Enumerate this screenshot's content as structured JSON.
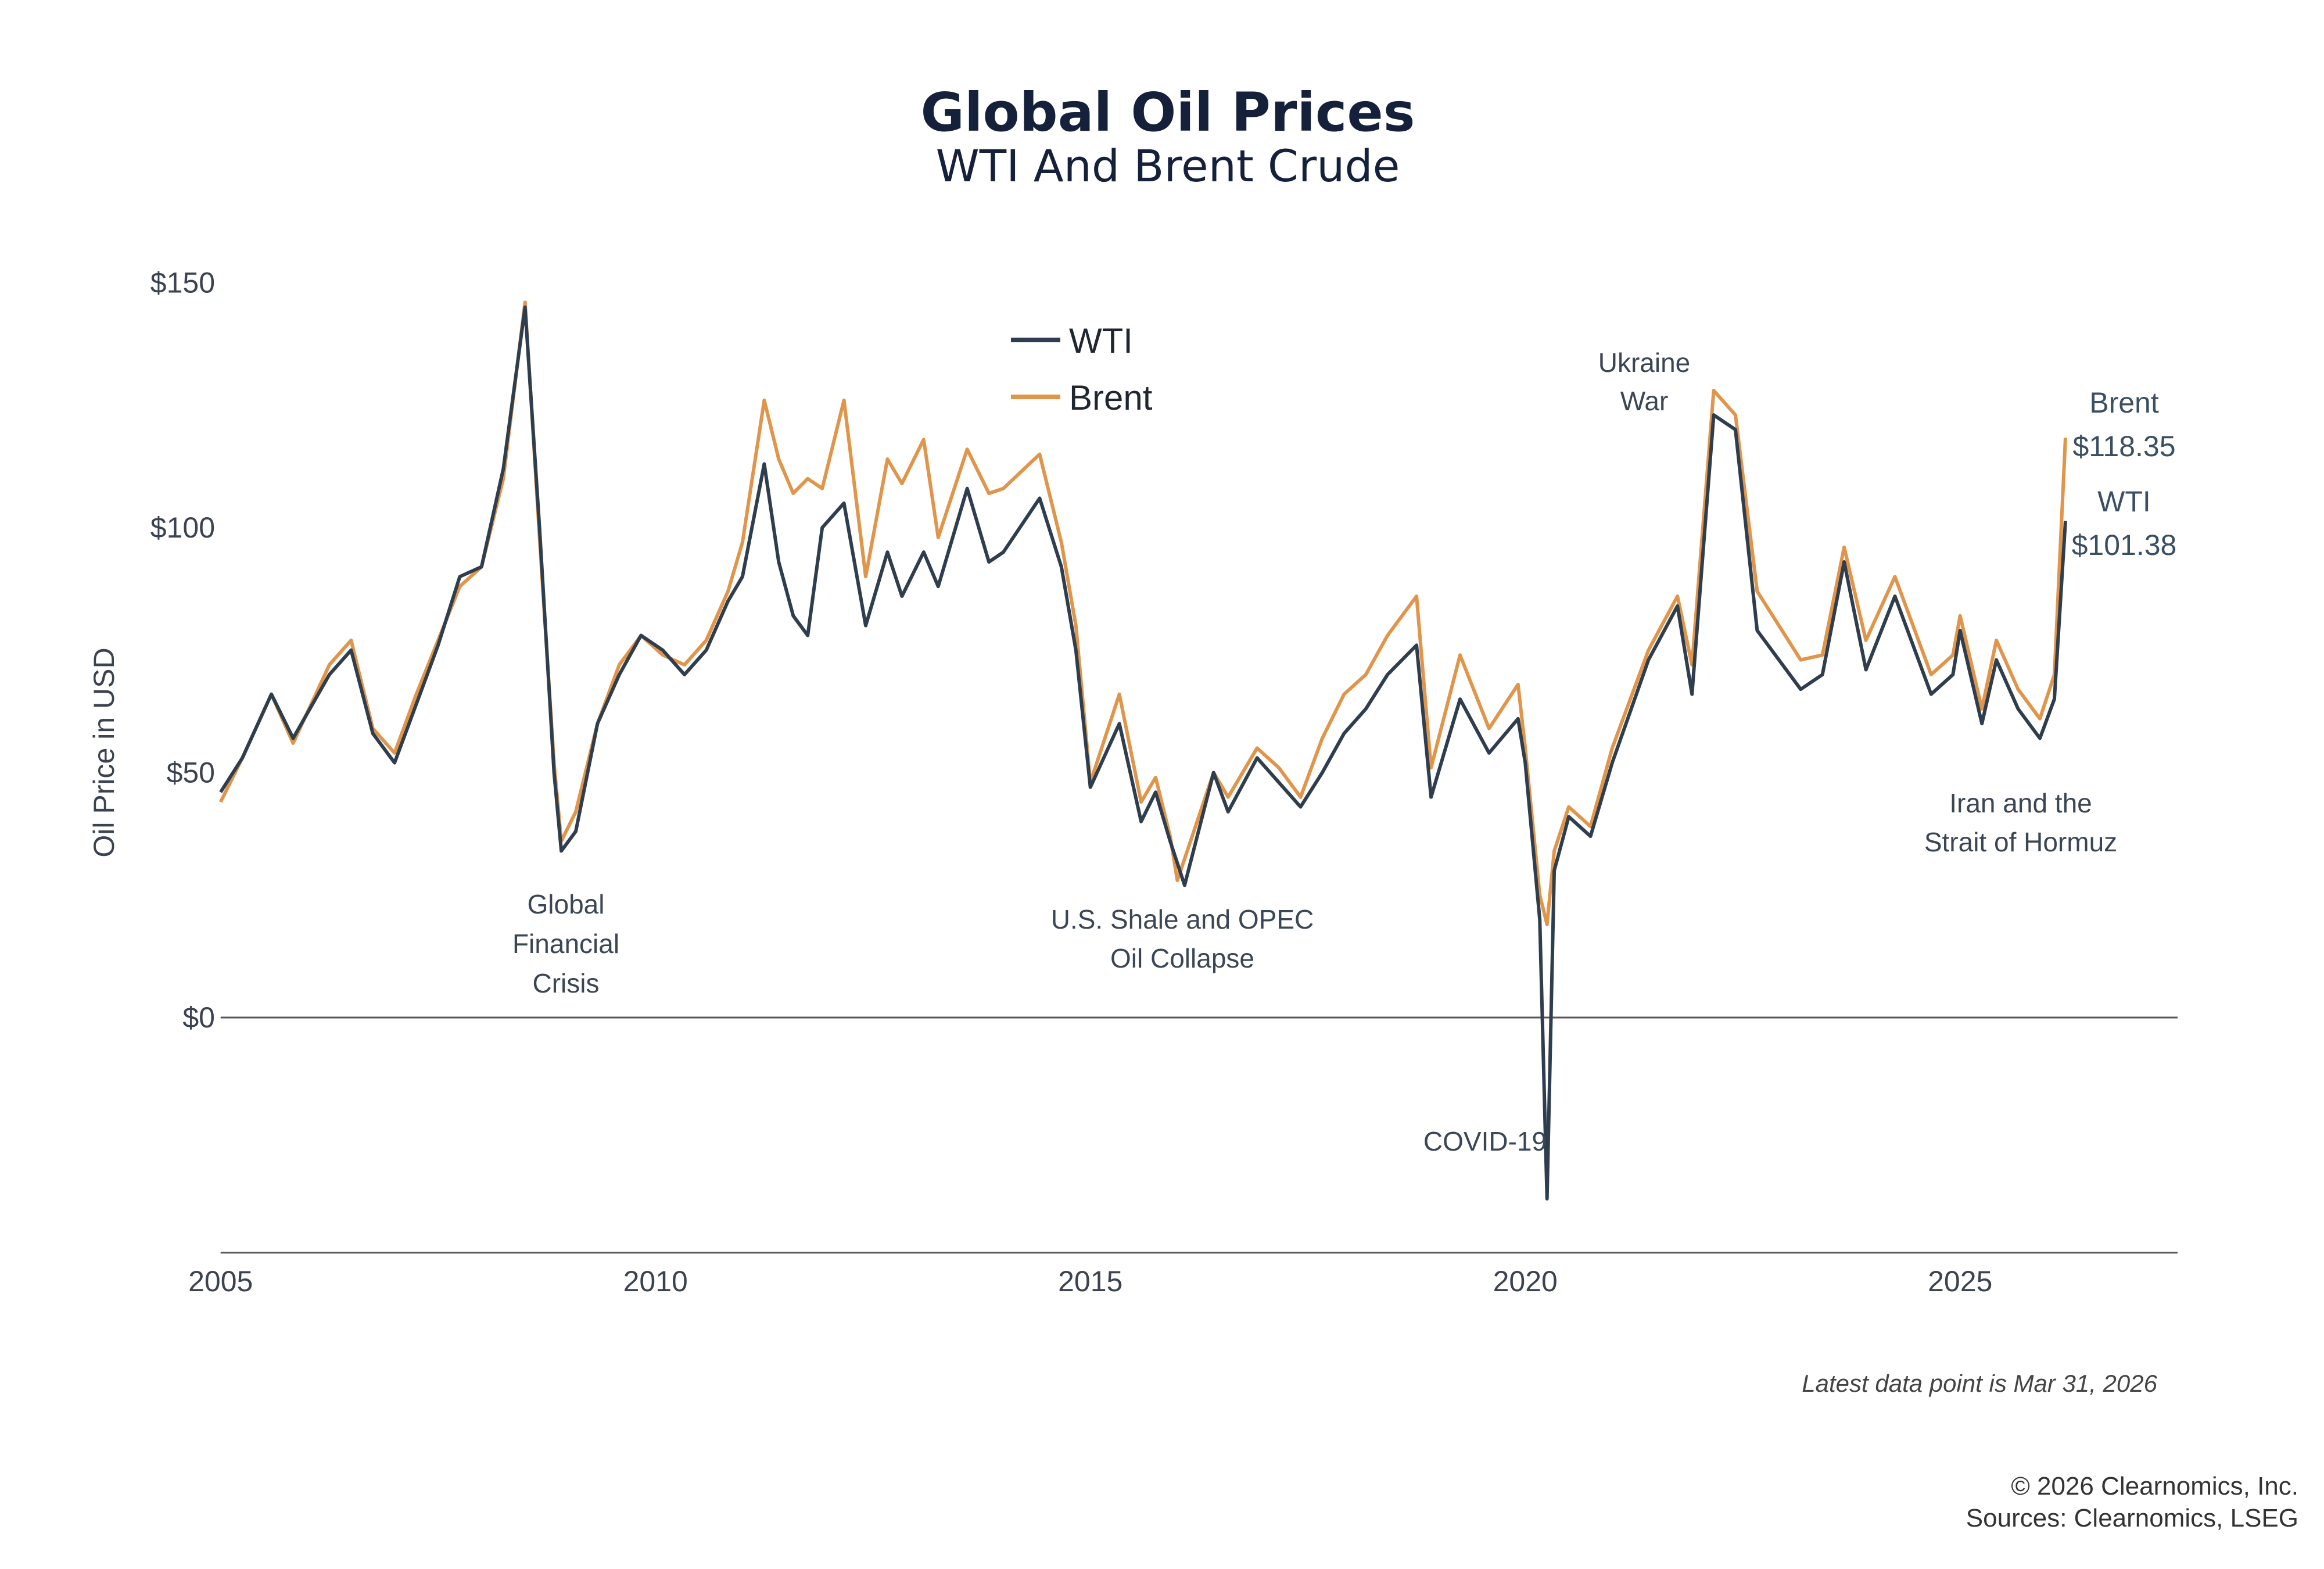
{
  "chart_data": {
    "type": "line",
    "title": "Global Oil Prices",
    "subtitle": "WTI And Brent Crude",
    "ylabel": "Oil Price in USD",
    "xlabel": "",
    "xlim": [
      "2005-01",
      "2027-07"
    ],
    "ylim": [
      -48,
      150
    ],
    "x_ticks": [
      "2005",
      "2010",
      "2015",
      "2020",
      "2025"
    ],
    "y_ticks": [
      {
        "value": 0,
        "label": "$0"
      },
      {
        "value": 50,
        "label": "$50"
      },
      {
        "value": 100,
        "label": "$100"
      },
      {
        "value": 150,
        "label": "$150"
      }
    ],
    "grid": false,
    "legend_placement": "top-center",
    "series": [
      {
        "name": "WTI",
        "color": "#2f3e4e",
        "points": [
          [
            "2005-01",
            46
          ],
          [
            "2005-04",
            53
          ],
          [
            "2005-08",
            66
          ],
          [
            "2005-11",
            57
          ],
          [
            "2006-04",
            70
          ],
          [
            "2006-07",
            75
          ],
          [
            "2006-10",
            58
          ],
          [
            "2007-01",
            52
          ],
          [
            "2007-04",
            64
          ],
          [
            "2007-07",
            76
          ],
          [
            "2007-10",
            90
          ],
          [
            "2008-01",
            92
          ],
          [
            "2008-04",
            112
          ],
          [
            "2008-07",
            145
          ],
          [
            "2008-09",
            100
          ],
          [
            "2008-11",
            50
          ],
          [
            "2008-12",
            34
          ],
          [
            "2009-02",
            38
          ],
          [
            "2009-05",
            60
          ],
          [
            "2009-08",
            70
          ],
          [
            "2009-11",
            78
          ],
          [
            "2010-02",
            75
          ],
          [
            "2010-05",
            70
          ],
          [
            "2010-08",
            75
          ],
          [
            "2010-11",
            85
          ],
          [
            "2011-01",
            90
          ],
          [
            "2011-04",
            113
          ],
          [
            "2011-06",
            93
          ],
          [
            "2011-08",
            82
          ],
          [
            "2011-10",
            78
          ],
          [
            "2011-12",
            100
          ],
          [
            "2012-03",
            105
          ],
          [
            "2012-06",
            80
          ],
          [
            "2012-09",
            95
          ],
          [
            "2012-11",
            86
          ],
          [
            "2013-02",
            95
          ],
          [
            "2013-04",
            88
          ],
          [
            "2013-08",
            108
          ],
          [
            "2013-11",
            93
          ],
          [
            "2014-01",
            95
          ],
          [
            "2014-06",
            106
          ],
          [
            "2014-09",
            92
          ],
          [
            "2014-11",
            75
          ],
          [
            "2015-01",
            47
          ],
          [
            "2015-05",
            60
          ],
          [
            "2015-08",
            40
          ],
          [
            "2015-10",
            46
          ],
          [
            "2015-12",
            36
          ],
          [
            "2016-02",
            27
          ],
          [
            "2016-06",
            50
          ],
          [
            "2016-08",
            42
          ],
          [
            "2016-12",
            53
          ],
          [
            "2017-03",
            48
          ],
          [
            "2017-06",
            43
          ],
          [
            "2017-09",
            50
          ],
          [
            "2017-12",
            58
          ],
          [
            "2018-03",
            63
          ],
          [
            "2018-06",
            70
          ],
          [
            "2018-10",
            76
          ],
          [
            "2018-12",
            45
          ],
          [
            "2019-04",
            65
          ],
          [
            "2019-08",
            54
          ],
          [
            "2019-12",
            61
          ],
          [
            "2020-01",
            52
          ],
          [
            "2020-03",
            20
          ],
          [
            "2020-04",
            -37
          ],
          [
            "2020-05",
            30
          ],
          [
            "2020-07",
            41
          ],
          [
            "2020-10",
            37
          ],
          [
            "2021-01",
            52
          ],
          [
            "2021-06",
            73
          ],
          [
            "2021-10",
            84
          ],
          [
            "2021-12",
            66
          ],
          [
            "2022-03",
            123
          ],
          [
            "2022-06",
            120
          ],
          [
            "2022-09",
            79
          ],
          [
            "2022-12",
            73
          ],
          [
            "2023-03",
            67
          ],
          [
            "2023-06",
            70
          ],
          [
            "2023-09",
            93
          ],
          [
            "2023-12",
            71
          ],
          [
            "2024-04",
            86
          ],
          [
            "2024-09",
            66
          ],
          [
            "2024-12",
            70
          ],
          [
            "2025-01",
            79
          ],
          [
            "2025-04",
            60
          ],
          [
            "2025-06",
            73
          ],
          [
            "2025-09",
            63
          ],
          [
            "2025-12",
            57
          ],
          [
            "2026-02",
            65
          ],
          [
            "2026-03-31",
            101.38
          ]
        ]
      },
      {
        "name": "Brent",
        "color": "#e0954a",
        "points": [
          [
            "2005-01",
            44
          ],
          [
            "2005-04",
            53
          ],
          [
            "2005-08",
            66
          ],
          [
            "2005-11",
            56
          ],
          [
            "2006-04",
            72
          ],
          [
            "2006-07",
            77
          ],
          [
            "2006-10",
            59
          ],
          [
            "2007-01",
            54
          ],
          [
            "2007-04",
            66
          ],
          [
            "2007-07",
            77
          ],
          [
            "2007-10",
            88
          ],
          [
            "2008-01",
            92
          ],
          [
            "2008-04",
            110
          ],
          [
            "2008-07",
            146
          ],
          [
            "2008-09",
            98
          ],
          [
            "2008-11",
            52
          ],
          [
            "2008-12",
            36
          ],
          [
            "2009-02",
            42
          ],
          [
            "2009-05",
            60
          ],
          [
            "2009-08",
            72
          ],
          [
            "2009-11",
            78
          ],
          [
            "2010-02",
            74
          ],
          [
            "2010-05",
            72
          ],
          [
            "2010-08",
            77
          ],
          [
            "2010-11",
            87
          ],
          [
            "2011-01",
            97
          ],
          [
            "2011-04",
            126
          ],
          [
            "2011-06",
            114
          ],
          [
            "2011-08",
            107
          ],
          [
            "2011-10",
            110
          ],
          [
            "2011-12",
            108
          ],
          [
            "2012-03",
            126
          ],
          [
            "2012-06",
            90
          ],
          [
            "2012-09",
            114
          ],
          [
            "2012-11",
            109
          ],
          [
            "2013-02",
            118
          ],
          [
            "2013-04",
            98
          ],
          [
            "2013-08",
            116
          ],
          [
            "2013-11",
            107
          ],
          [
            "2014-01",
            108
          ],
          [
            "2014-06",
            115
          ],
          [
            "2014-09",
            97
          ],
          [
            "2014-11",
            80
          ],
          [
            "2015-01",
            48
          ],
          [
            "2015-05",
            66
          ],
          [
            "2015-08",
            44
          ],
          [
            "2015-10",
            49
          ],
          [
            "2015-12",
            37
          ],
          [
            "2016-01",
            28
          ],
          [
            "2016-06",
            50
          ],
          [
            "2016-08",
            45
          ],
          [
            "2016-12",
            55
          ],
          [
            "2017-03",
            51
          ],
          [
            "2017-06",
            45
          ],
          [
            "2017-09",
            57
          ],
          [
            "2017-12",
            66
          ],
          [
            "2018-03",
            70
          ],
          [
            "2018-06",
            78
          ],
          [
            "2018-10",
            86
          ],
          [
            "2018-12",
            51
          ],
          [
            "2019-04",
            74
          ],
          [
            "2019-08",
            59
          ],
          [
            "2019-12",
            68
          ],
          [
            "2020-01",
            55
          ],
          [
            "2020-03",
            25
          ],
          [
            "2020-04",
            19
          ],
          [
            "2020-05",
            34
          ],
          [
            "2020-07",
            43
          ],
          [
            "2020-10",
            39
          ],
          [
            "2021-01",
            55
          ],
          [
            "2021-06",
            75
          ],
          [
            "2021-10",
            86
          ],
          [
            "2021-12",
            72
          ],
          [
            "2022-03",
            128
          ],
          [
            "2022-06",
            123
          ],
          [
            "2022-09",
            87
          ],
          [
            "2022-12",
            80
          ],
          [
            "2023-03",
            73
          ],
          [
            "2023-06",
            74
          ],
          [
            "2023-09",
            96
          ],
          [
            "2023-12",
            77
          ],
          [
            "2024-04",
            90
          ],
          [
            "2024-09",
            70
          ],
          [
            "2024-12",
            74
          ],
          [
            "2025-01",
            82
          ],
          [
            "2025-04",
            63
          ],
          [
            "2025-06",
            77
          ],
          [
            "2025-09",
            67
          ],
          [
            "2025-12",
            61
          ],
          [
            "2026-02",
            70
          ],
          [
            "2026-03-31",
            118.35
          ]
        ]
      }
    ],
    "annotations": [
      {
        "lines": [
          "Global",
          "Financial",
          "Crisis"
        ]
      },
      {
        "lines": [
          "U.S. Shale and OPEC",
          "Oil Collapse"
        ]
      },
      {
        "lines": [
          "COVID-19"
        ]
      },
      {
        "lines": [
          "Ukraine",
          "War"
        ]
      },
      {
        "lines": [
          "Iran and the",
          "Strait of Hormuz"
        ]
      }
    ],
    "end_labels": {
      "brent_name": "Brent",
      "brent_value": "$118.35",
      "wti_name": "WTI",
      "wti_value": "$101.38"
    },
    "note": "Latest data point is Mar 31, 2026"
  },
  "footer": {
    "copyright": "© 2026 Clearnomics, Inc.",
    "sources": "Sources: Clearnomics, LSEG"
  }
}
